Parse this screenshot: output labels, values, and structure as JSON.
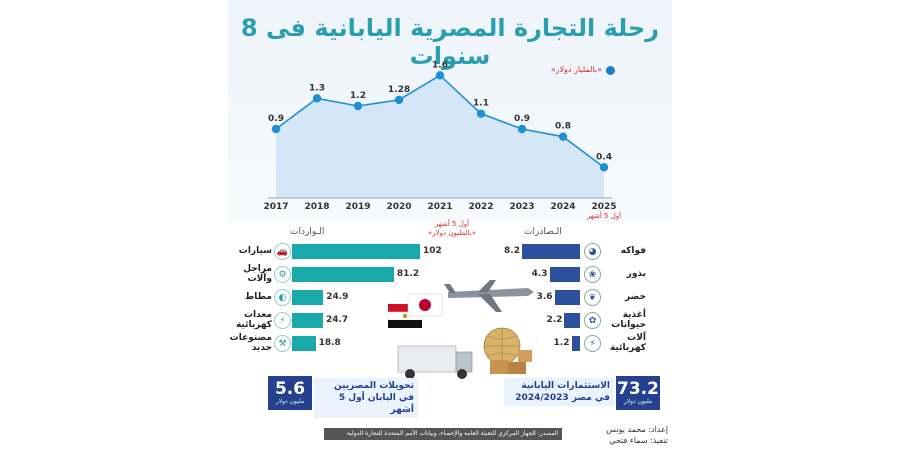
{
  "title": "رحلة التجارة المصرية اليابانية فى 8 سنوات",
  "chart_data": {
    "type": "area",
    "unit": "«بالمليار دولار»",
    "categories": [
      "2017",
      "2018",
      "2019",
      "2020",
      "2021",
      "2022",
      "2023",
      "2024",
      "2025"
    ],
    "values": [
      0.9,
      1.3,
      1.2,
      1.28,
      1.6,
      1.1,
      0.9,
      0.8,
      0.4
    ],
    "value_labels": [
      "0.9",
      "1.3",
      "1.2",
      "1.28",
      "1.6",
      "1.1",
      "0.9",
      "0.8",
      "0.4"
    ],
    "last_note": "أول 5 أشهر",
    "ylim": [
      0,
      1.8
    ],
    "color": "#1d8fd8"
  },
  "bars": {
    "note_period": "أول 5 أشهر",
    "note_unit": "«بالمليون دولار»",
    "imports_title": "الـواردات",
    "exports_title": "الـصادرات",
    "imports": [
      {
        "label": "سيارات",
        "value": 102,
        "icon": "car-icon",
        "glyph": "🚗"
      },
      {
        "label": "مراجل وآلات",
        "value": 81.2,
        "icon": "gear-icon",
        "glyph": "⚙"
      },
      {
        "label": "مطاط",
        "value": 24.9,
        "icon": "rubber-icon",
        "glyph": "◐"
      },
      {
        "label": "معدات كهربائية",
        "value": 24.7,
        "icon": "electric-icon",
        "glyph": "⚡"
      },
      {
        "label": "مصنوعات حديد",
        "value": 18.8,
        "icon": "iron-icon",
        "glyph": "⚒"
      }
    ],
    "exports": [
      {
        "label": "فواكه",
        "value": 8.2,
        "icon": "fruit-icon",
        "glyph": "◕"
      },
      {
        "label": "بذور",
        "value": 4.3,
        "icon": "seeds-icon",
        "glyph": "❀"
      },
      {
        "label": "خضر",
        "value": 3.6,
        "icon": "vegetables-icon",
        "glyph": "❦"
      },
      {
        "label": "أغذية حيوانات",
        "value": 2.2,
        "icon": "animal-feed-icon",
        "glyph": "✿"
      },
      {
        "label": "آلات كهربائية",
        "value": 1.2,
        "icon": "electric-machine-icon",
        "glyph": "⚡"
      }
    ],
    "imports_color": "#1aa9aa",
    "exports_color": "#2c4f9e"
  },
  "summary": {
    "remittances": {
      "value": "5.6",
      "unit": "مليون دولار",
      "label": "تحويلات المصريين في اليابان أول 5 أشهر"
    },
    "investments": {
      "value": "73.2",
      "unit": "مليون دولار",
      "label": "الاستثمارات اليابانية في مصر 2024/2023"
    }
  },
  "footer": {
    "source": "المصدر: الجهاز المركزي للتعبئة العامة والإحصاء، وبيانات الأمم المتحدة للتجارة الدولية",
    "prepared": "إعداد: محمد يونس",
    "design": "تنفيذ: سماء فتحي"
  }
}
